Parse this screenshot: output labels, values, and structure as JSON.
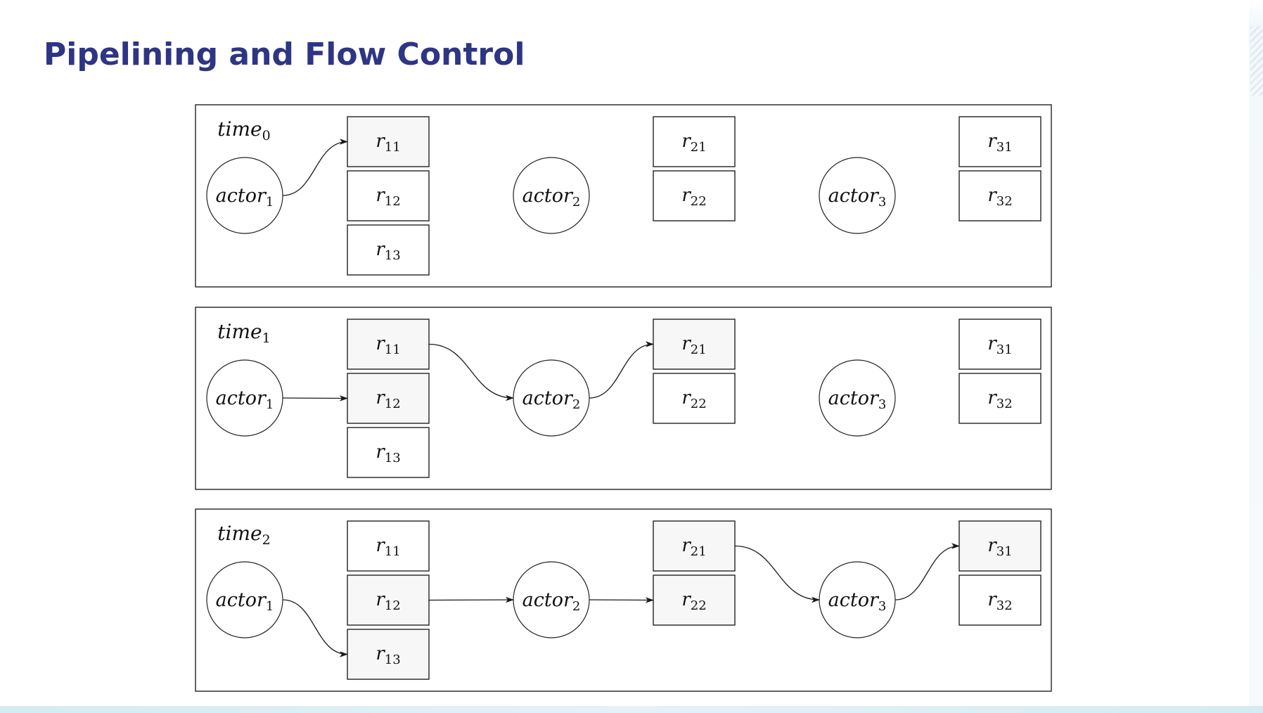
{
  "slide": {
    "title": "Pipelining and Flow Control"
  },
  "colors": {
    "title": "#2e3585",
    "highlight_fill": "#f7f7f7",
    "stroke": "#222222"
  },
  "actors": [
    {
      "id": "actor1",
      "name": "actor",
      "sub": "1"
    },
    {
      "id": "actor2",
      "name": "actor",
      "sub": "2"
    },
    {
      "id": "actor3",
      "name": "actor",
      "sub": "3"
    }
  ],
  "queues": [
    {
      "actor": "actor1",
      "items": [
        {
          "id": "r11",
          "name": "r",
          "sub": "11"
        },
        {
          "id": "r12",
          "name": "r",
          "sub": "12"
        },
        {
          "id": "r13",
          "name": "r",
          "sub": "13"
        }
      ]
    },
    {
      "actor": "actor2",
      "items": [
        {
          "id": "r21",
          "name": "r",
          "sub": "21"
        },
        {
          "id": "r22",
          "name": "r",
          "sub": "22"
        }
      ]
    },
    {
      "actor": "actor3",
      "items": [
        {
          "id": "r31",
          "name": "r",
          "sub": "31"
        },
        {
          "id": "r32",
          "name": "r",
          "sub": "32"
        }
      ]
    }
  ],
  "panels": [
    {
      "label": "time",
      "sub": "0",
      "highlighted": [
        "r11"
      ],
      "arrows": [
        {
          "from": "actor1",
          "to": "r11",
          "style": "curve-up"
        }
      ]
    },
    {
      "label": "time",
      "sub": "1",
      "highlighted": [
        "r11",
        "r12",
        "r21"
      ],
      "arrows": [
        {
          "from": "actor1",
          "to": "r12",
          "style": "straight"
        },
        {
          "from": "r11",
          "to": "actor2",
          "style": "curve-down"
        },
        {
          "from": "actor2",
          "to": "r21",
          "style": "curve-up"
        }
      ]
    },
    {
      "label": "time",
      "sub": "2",
      "highlighted": [
        "r12",
        "r13",
        "r21",
        "r22",
        "r31"
      ],
      "arrows": [
        {
          "from": "actor1",
          "to": "r13",
          "style": "curve-down"
        },
        {
          "from": "r12",
          "to": "actor2",
          "style": "straight"
        },
        {
          "from": "actor2",
          "to": "r22",
          "style": "straight"
        },
        {
          "from": "r21",
          "to": "actor3",
          "style": "curve-down"
        },
        {
          "from": "actor3",
          "to": "r31",
          "style": "curve-up"
        }
      ]
    }
  ]
}
